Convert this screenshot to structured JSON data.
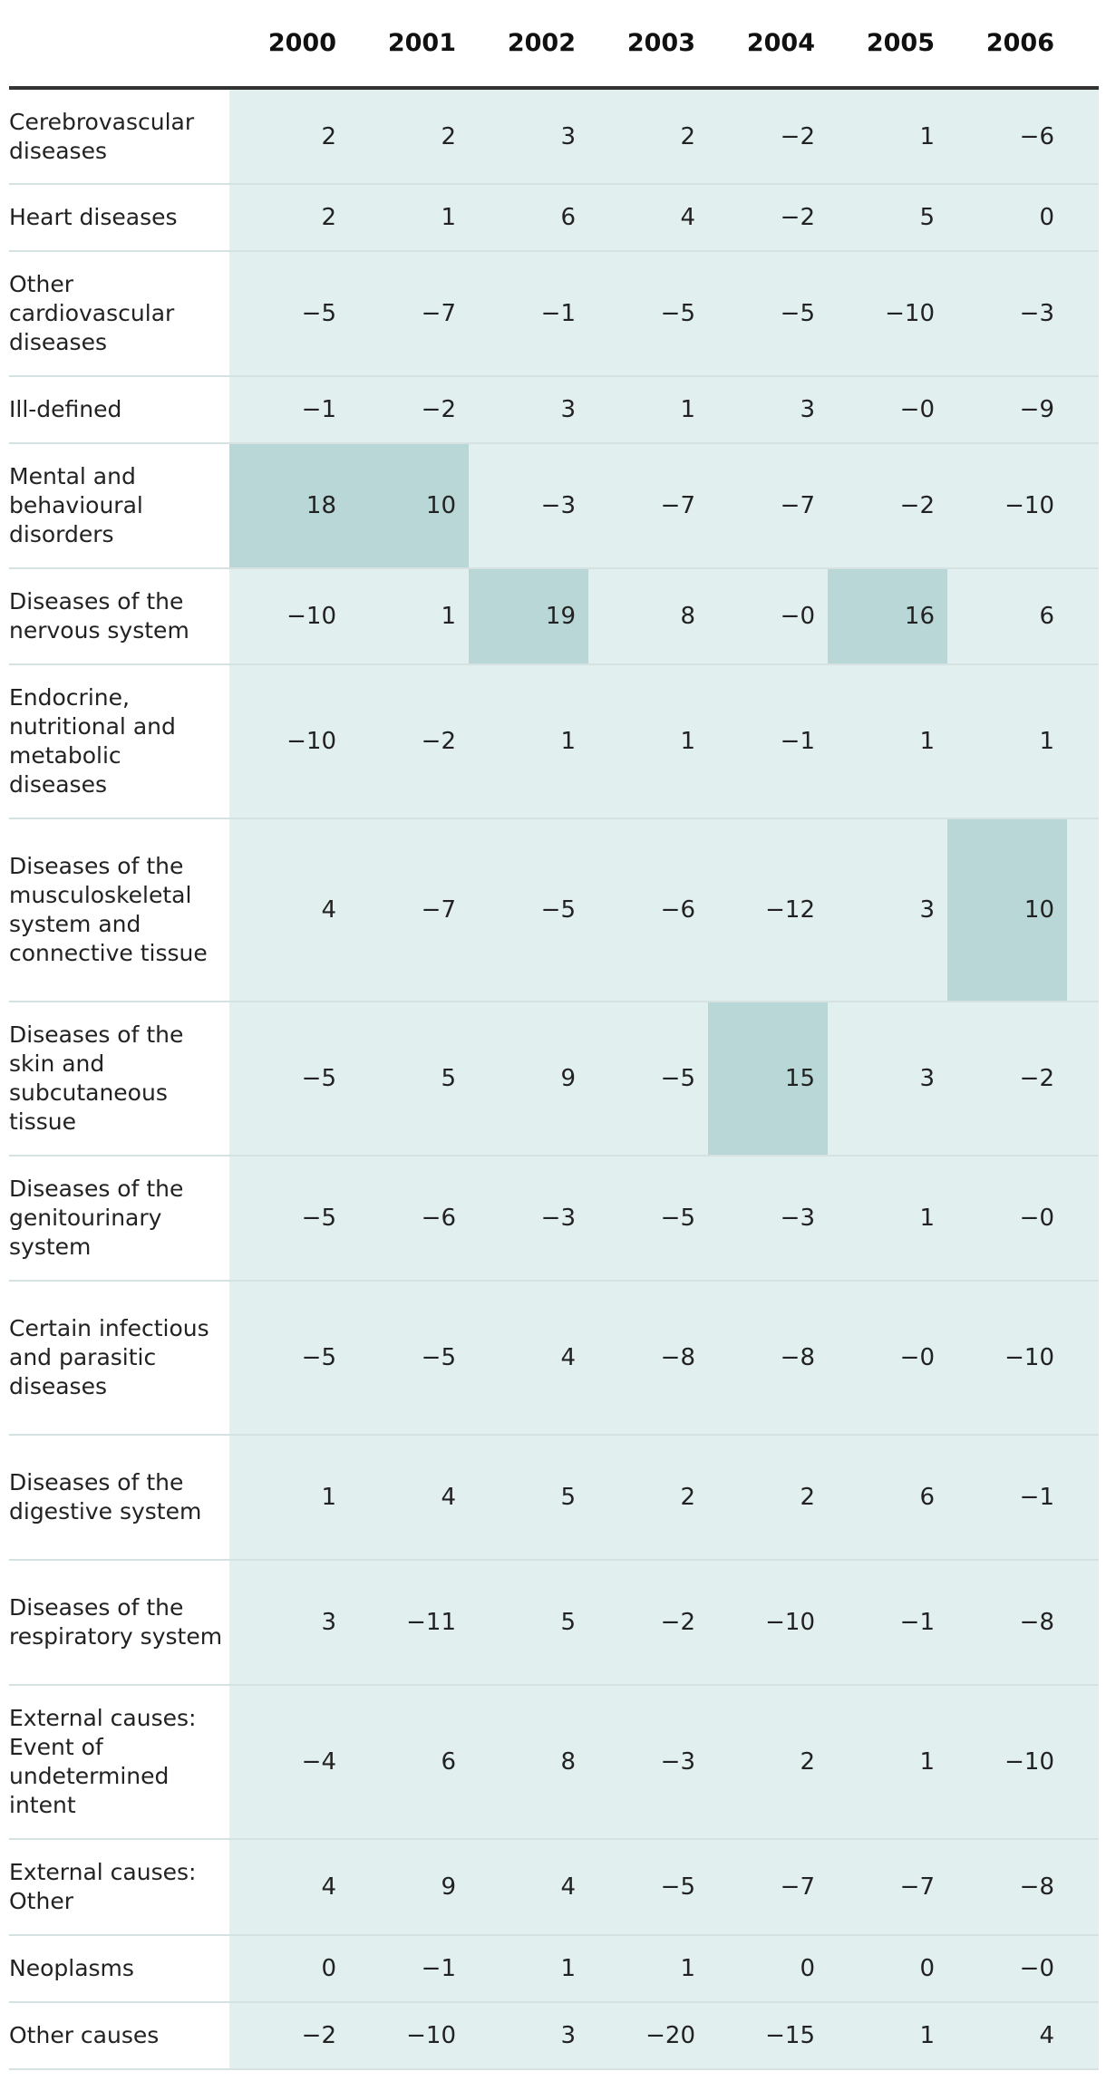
{
  "chart_data": {
    "type": "table",
    "columns": [
      "2000",
      "2001",
      "2002",
      "2003",
      "2004",
      "2005",
      "2006"
    ],
    "rows": [
      {
        "label": "Cerebrovascular diseases",
        "values": [
          "2",
          "2",
          "3",
          "2",
          "−2",
          "1",
          "−6"
        ]
      },
      {
        "label": "Heart diseases",
        "values": [
          "2",
          "1",
          "6",
          "4",
          "−2",
          "5",
          "0"
        ]
      },
      {
        "label": "Other cardiovascular diseases",
        "values": [
          "−5",
          "−7",
          "−1",
          "−5",
          "−5",
          "−10",
          "−3"
        ]
      },
      {
        "label": "Ill-defined",
        "values": [
          "−1",
          "−2",
          "3",
          "1",
          "3",
          "−0",
          "−9"
        ]
      },
      {
        "label": "Mental and behavioural disorders",
        "values": [
          "18",
          "10",
          "−3",
          "−7",
          "−7",
          "−2",
          "−10"
        ],
        "highlight": [
          0,
          1
        ]
      },
      {
        "label": "Diseases of the nervous system",
        "values": [
          "−10",
          "1",
          "19",
          "8",
          "−0",
          "16",
          "6"
        ],
        "highlight": [
          2,
          5
        ]
      },
      {
        "label": "Endocrine, nutritional and metabolic diseases",
        "values": [
          "−10",
          "−2",
          "1",
          "1",
          "−1",
          "1",
          "1"
        ]
      },
      {
        "label": "Diseases of the musculoskeletal system and connective tissue",
        "values": [
          "4",
          "−7",
          "−5",
          "−6",
          "−12",
          "3",
          "10"
        ],
        "highlight": [
          6
        ]
      },
      {
        "label": "Diseases of the skin and subcutaneous tissue",
        "values": [
          "−5",
          "5",
          "9",
          "−5",
          "15",
          "3",
          "−2"
        ],
        "highlight": [
          4
        ]
      },
      {
        "label": "Diseases of the genitourinary system",
        "values": [
          "−5",
          "−6",
          "−3",
          "−5",
          "−3",
          "1",
          "−0"
        ]
      },
      {
        "label": "Certain infectious and parasitic diseases",
        "values": [
          "−5",
          "−5",
          "4",
          "−8",
          "−8",
          "−0",
          "−10"
        ]
      },
      {
        "label": "Diseases of the digestive system",
        "values": [
          "1",
          "4",
          "5",
          "2",
          "2",
          "6",
          "−1"
        ]
      },
      {
        "label": "Diseases of the respiratory system",
        "values": [
          "3",
          "−11",
          "5",
          "−2",
          "−10",
          "−1",
          "−8"
        ]
      },
      {
        "label": "External causes: Event of undetermined intent",
        "values": [
          "−4",
          "6",
          "8",
          "−3",
          "2",
          "1",
          "−10"
        ]
      },
      {
        "label": "External causes: Other",
        "values": [
          "4",
          "9",
          "4",
          "−5",
          "−7",
          "−7",
          "−8"
        ]
      },
      {
        "label": "Neoplasms",
        "values": [
          "0",
          "−1",
          "1",
          "1",
          "0",
          "0",
          "−0"
        ]
      },
      {
        "label": "Other causes",
        "values": [
          "−2",
          "−10",
          "3",
          "−20",
          "−15",
          "1",
          "4"
        ]
      }
    ],
    "colors": {
      "cell": "#e1efee",
      "highlight": "#b9d7d6",
      "rule": "#333333",
      "gridline": "#d5e2e1"
    }
  }
}
